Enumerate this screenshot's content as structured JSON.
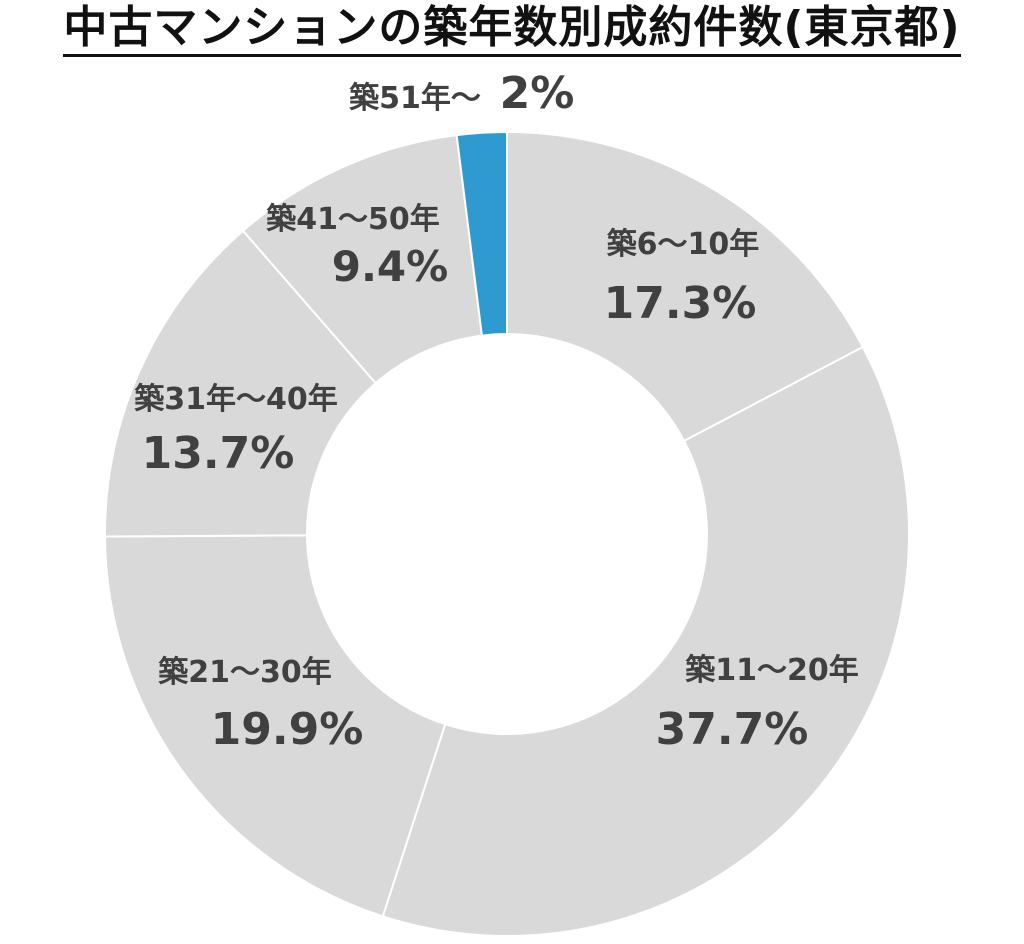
{
  "title": "中古マンションの築年数別成約件数(東京都)",
  "colors": {
    "segment_default": "#d9d9d9",
    "segment_highlight": "#2e9ad0",
    "segment_border": "#ffffff",
    "label_text": "#404040",
    "highlight_text": "#2e9ad0",
    "title_text": "#111111"
  },
  "chart_data": {
    "type": "pie",
    "style": "donut",
    "title": "中古マンションの築年数別成約件数(東京都)",
    "legend": "none",
    "unit": "%",
    "categories": [
      "築6～10年",
      "築11～20年",
      "築21～30年",
      "築31年～40年",
      "築41～50年",
      "築51年～"
    ],
    "values": [
      17.3,
      37.7,
      19.9,
      13.7,
      9.4,
      2
    ],
    "value_labels": [
      "17.3%",
      "37.7%",
      "19.9%",
      "13.7%",
      "9.4%",
      "2%"
    ],
    "highlighted_category": "築51年～"
  }
}
